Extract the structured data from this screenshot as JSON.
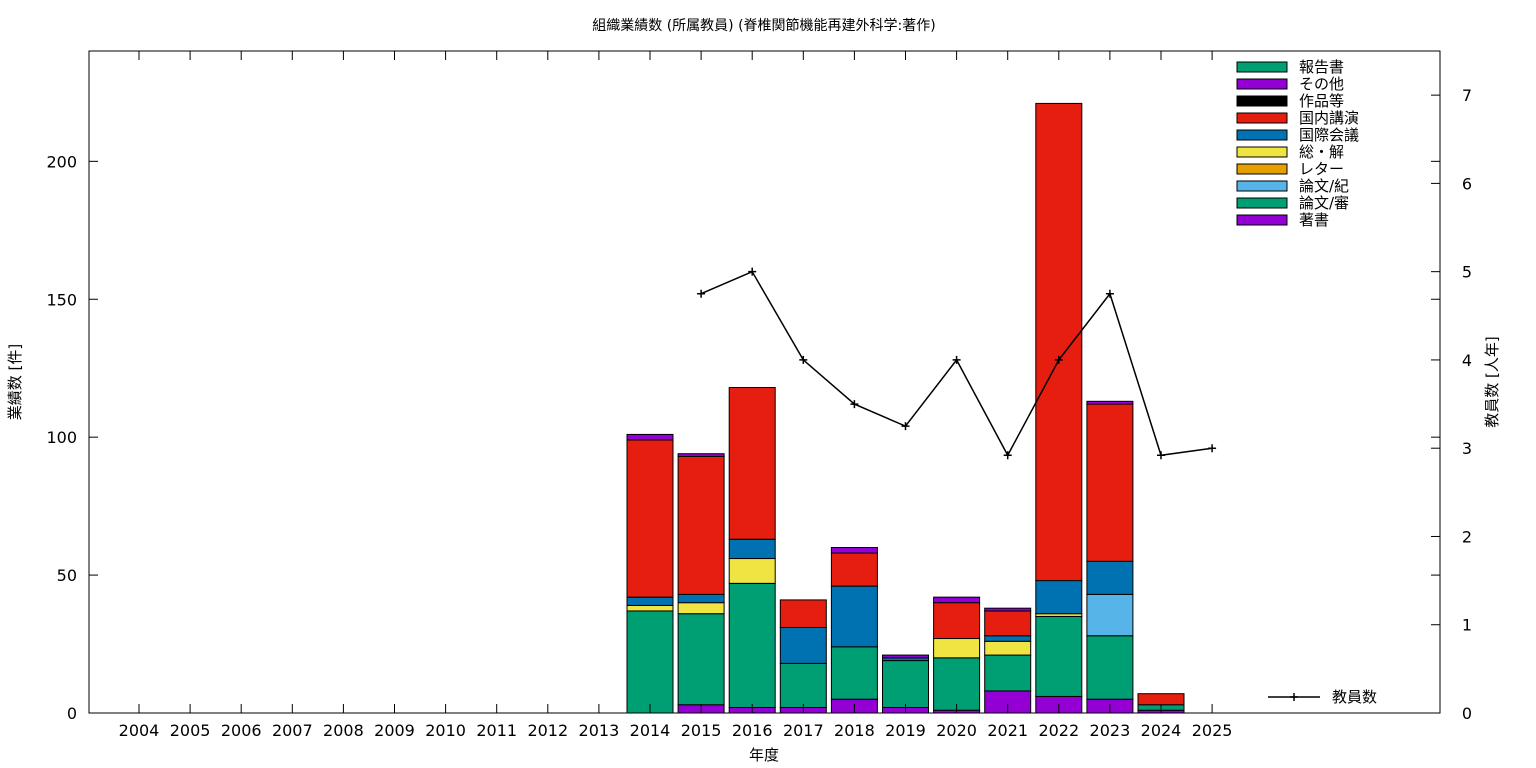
{
  "chart_data": {
    "type": "bar",
    "title": "組織業績数 (所属教員) (脊椎関節機能再建外科学:著作)",
    "xlabel": "年度",
    "ylabel": "業績数 [件]",
    "y2label": "教員数 [人年]",
    "categories": [
      "2004",
      "2005",
      "2006",
      "2007",
      "2008",
      "2009",
      "2010",
      "2011",
      "2012",
      "2013",
      "2014",
      "2015",
      "2016",
      "2017",
      "2018",
      "2019",
      "2020",
      "2021",
      "2022",
      "2023",
      "2024",
      "2025"
    ],
    "ylim": [
      0,
      240
    ],
    "yticks": [
      0,
      50,
      100,
      150,
      200
    ],
    "y2lim": [
      0,
      7.5
    ],
    "y2ticks": [
      0,
      1,
      2,
      3,
      4,
      5,
      6,
      7
    ],
    "grid": false,
    "legend_position": "top-right",
    "stack_order": [
      "著書",
      "論文/審",
      "論文/紀",
      "レター",
      "総・解",
      "国際会議",
      "国内講演",
      "作品等",
      "その他",
      "報告書"
    ],
    "series": [
      {
        "name": "報告書",
        "color": "#009e73",
        "values": [
          0,
          0,
          0,
          0,
          0,
          0,
          0,
          0,
          0,
          0,
          0,
          0,
          0,
          0,
          0,
          0,
          0,
          0,
          0,
          0,
          0,
          0
        ]
      },
      {
        "name": "その他",
        "color": "#9400d3",
        "values": [
          0,
          0,
          0,
          0,
          0,
          0,
          0,
          0,
          0,
          0,
          2,
          1,
          0,
          0,
          2,
          1,
          2,
          1,
          0,
          1,
          0,
          0
        ]
      },
      {
        "name": "作品等",
        "color": "#000000",
        "values": [
          0,
          0,
          0,
          0,
          0,
          0,
          0,
          0,
          0,
          0,
          0,
          0,
          0,
          0,
          0,
          0,
          0,
          0,
          0,
          0,
          0,
          0
        ]
      },
      {
        "name": "国内講演",
        "color": "#e51e10",
        "values": [
          0,
          0,
          0,
          0,
          0,
          0,
          0,
          0,
          0,
          0,
          57,
          50,
          55,
          10,
          12,
          0,
          13,
          9,
          173,
          57,
          4,
          0
        ]
      },
      {
        "name": "国際会議",
        "color": "#0072b2",
        "values": [
          0,
          0,
          0,
          0,
          0,
          0,
          0,
          0,
          0,
          0,
          3,
          3,
          7,
          13,
          22,
          1,
          0,
          2,
          12,
          12,
          0,
          0
        ]
      },
      {
        "name": "総・解",
        "color": "#f0e442",
        "values": [
          0,
          0,
          0,
          0,
          0,
          0,
          0,
          0,
          0,
          0,
          2,
          4,
          9,
          0,
          0,
          0,
          7,
          5,
          1,
          0,
          0,
          0
        ]
      },
      {
        "name": "レター",
        "color": "#e69f00",
        "values": [
          0,
          0,
          0,
          0,
          0,
          0,
          0,
          0,
          0,
          0,
          0,
          0,
          0,
          0,
          0,
          0,
          0,
          0,
          0,
          0,
          0,
          0
        ]
      },
      {
        "name": "論文/紀",
        "color": "#56b4e9",
        "values": [
          0,
          0,
          0,
          0,
          0,
          0,
          0,
          0,
          0,
          0,
          0,
          0,
          0,
          0,
          0,
          0,
          0,
          0,
          0,
          15,
          0,
          0
        ]
      },
      {
        "name": "論文/審",
        "color": "#009e73",
        "values": [
          0,
          0,
          0,
          0,
          0,
          0,
          0,
          0,
          0,
          0,
          37,
          33,
          45,
          16,
          19,
          17,
          19,
          13,
          29,
          23,
          2,
          0
        ]
      },
      {
        "name": "著書",
        "color": "#9400d3",
        "values": [
          0,
          0,
          0,
          0,
          0,
          0,
          0,
          0,
          0,
          0,
          0,
          3,
          2,
          2,
          5,
          2,
          1,
          8,
          6,
          5,
          1,
          0
        ]
      }
    ],
    "line": {
      "name": "教員数",
      "axis": "right",
      "color": "#000000",
      "x": [
        "2015",
        "2016",
        "2017",
        "2018",
        "2019",
        "2020",
        "2021",
        "2022",
        "2023",
        "2024",
        "2025"
      ],
      "values": [
        4.75,
        5.0,
        4.0,
        3.5,
        3.25,
        4.0,
        2.92,
        4.0,
        4.75,
        2.92,
        3.0
      ]
    }
  }
}
